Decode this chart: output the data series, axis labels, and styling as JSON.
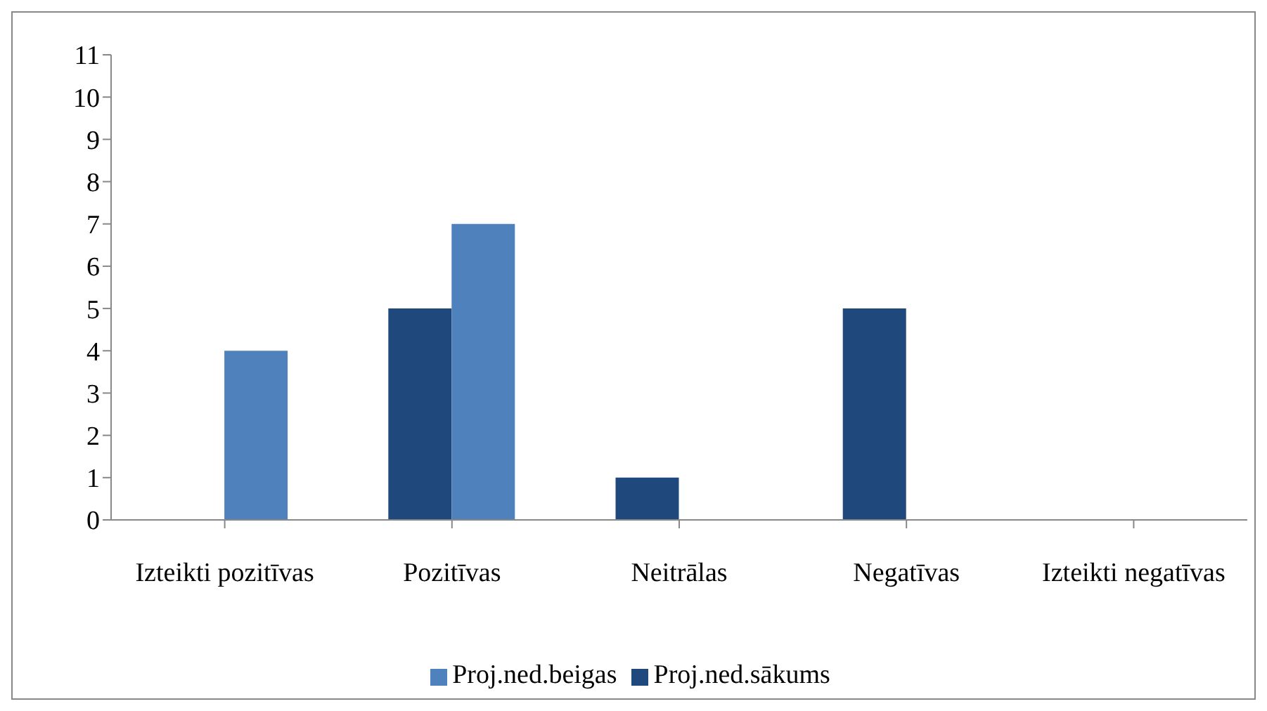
{
  "chart_data": {
    "type": "bar",
    "categories": [
      "Izteikti pozitīvas",
      "Pozitīvas",
      "Neitrālas",
      "Negatīvas",
      "Izteikti negatīvas"
    ],
    "series": [
      {
        "name": "Proj.ned.sākums",
        "color": "#1f497d",
        "values": [
          0,
          5,
          1,
          5,
          0
        ]
      },
      {
        "name": "Proj.ned.beigas",
        "color": "#4f81bd",
        "values": [
          4,
          7,
          0,
          0,
          0
        ]
      }
    ],
    "ylim": [
      0,
      11
    ],
    "yticks": [
      0,
      1,
      2,
      3,
      4,
      5,
      6,
      7,
      8,
      9,
      10,
      11
    ],
    "grid": false,
    "legend": "bottom"
  }
}
